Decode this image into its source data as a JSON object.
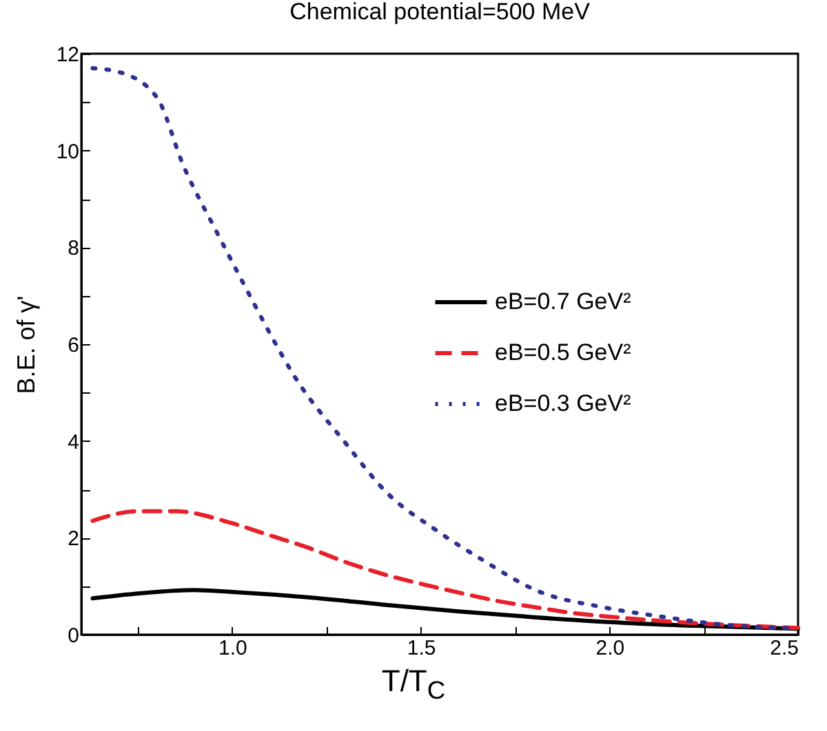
{
  "chart_data": {
    "type": "line",
    "title": "Chemical potential=500 MeV",
    "xlabel": "T/T$_{C}$",
    "ylabel": "B.E. of γ'",
    "xlim": [
      0.6,
      2.5
    ],
    "ylim": [
      0,
      12
    ],
    "xticks": [
      {
        "value": 0.75,
        "label": null
      },
      {
        "value": 1,
        "label": "1.0"
      },
      {
        "value": 1.25,
        "label": null
      },
      {
        "value": 1.5,
        "label": "1.5"
      },
      {
        "value": 1.75,
        "label": null
      },
      {
        "value": 2,
        "label": "2.0"
      },
      {
        "value": 2.25,
        "label": null
      },
      {
        "value": 2.5,
        "label": "2.5"
      }
    ],
    "yticks": [
      0,
      {
        "value": 1,
        "label": null
      },
      2,
      {
        "value": 3,
        "label": null
      },
      4,
      {
        "value": 5,
        "label": null
      },
      6,
      {
        "value": 7,
        "label": null
      },
      8,
      {
        "value": 9,
        "label": null
      },
      10,
      {
        "value": 11,
        "label": null
      },
      12
    ],
    "legend": "center",
    "grid": false,
    "series": [
      {
        "name": "eB=0.7 GeV²",
        "color": "#000000",
        "line_style": "solid",
        "x": [
          0.63,
          0.75,
          0.9,
          1.0,
          1.2,
          1.4,
          1.6,
          1.8,
          2.0,
          2.2,
          2.5
        ],
        "values": [
          0.75,
          0.85,
          0.92,
          0.88,
          0.77,
          0.62,
          0.48,
          0.36,
          0.26,
          0.19,
          0.12
        ]
      },
      {
        "name": "eB=0.5 GeV²",
        "color": "#e8202a",
        "line_style": "dashed",
        "x": [
          0.63,
          0.75,
          0.85,
          1.0,
          1.1,
          1.2,
          1.3,
          1.4,
          1.5,
          1.6,
          1.7,
          1.8,
          1.9,
          2.0,
          2.2,
          2.4,
          2.5
        ],
        "values": [
          2.35,
          2.55,
          2.55,
          2.3,
          2.05,
          1.8,
          1.5,
          1.25,
          1.05,
          0.87,
          0.7,
          0.57,
          0.45,
          0.37,
          0.25,
          0.17,
          0.14
        ]
      },
      {
        "name": "eB=0.3 GeV²",
        "color": "#2e3192",
        "line_style": "dotted",
        "x": [
          0.63,
          0.7,
          0.8,
          0.87,
          0.96,
          1.03,
          1.13,
          1.16,
          1.3,
          1.41,
          1.54,
          1.66,
          1.81,
          1.98,
          2.14,
          2.31,
          2.48
        ],
        "values": [
          11.7,
          11.62,
          11.1,
          9.7,
          8.3,
          7.25,
          5.8,
          5.4,
          3.96,
          2.93,
          2.16,
          1.56,
          0.9,
          0.57,
          0.37,
          0.2,
          0.13
        ]
      }
    ]
  }
}
